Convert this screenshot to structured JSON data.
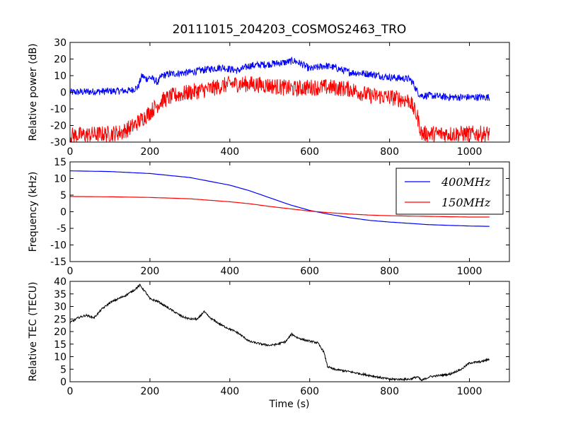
{
  "chart_data": {
    "title": "20111015_204203_COSMOS2463_TRO",
    "xlabel": "Time (s)",
    "xlim": [
      0,
      1100
    ],
    "xticks": [
      0,
      200,
      400,
      600,
      800,
      1000
    ],
    "panels": [
      {
        "type": "line",
        "ylabel": "Relative power (dB)",
        "ylim": [
          -30,
          30
        ],
        "yticks": [
          -30,
          -20,
          -10,
          0,
          10,
          20,
          30
        ],
        "grid": false,
        "series": [
          {
            "color": "#0000ff",
            "noise": 2.2,
            "x": [
              0,
              150,
              170,
              180,
              190,
              200,
              220,
              230,
              250,
              300,
              350,
              380,
              400,
              420,
              450,
              500,
              540,
              560,
              580,
              600,
              640,
              660,
              700,
              750,
              800,
              850,
              860,
              870,
              880,
              900,
              950,
              1000,
              1050
            ],
            "y": [
              0,
              1,
              3,
              10,
              8,
              9,
              6,
              10,
              11,
              12,
              14,
              15,
              14,
              13,
              16,
              17,
              18,
              19,
              17,
              14,
              16,
              15,
              12,
              11,
              9,
              8,
              5,
              0,
              -2,
              -2,
              -3,
              -3,
              -3
            ]
          },
          {
            "color": "#ff0000",
            "noise": 5,
            "x": [
              0,
              100,
              130,
              160,
              200,
              230,
              260,
              300,
              350,
              400,
              450,
              500,
              560,
              600,
              650,
              700,
              750,
              800,
              850,
              870,
              880,
              900,
              1050
            ],
            "y": [
              -26,
              -25,
              -24,
              -20,
              -12,
              -5,
              -2,
              0,
              2,
              5,
              5,
              4,
              2,
              3,
              3,
              2,
              -2,
              -3,
              -5,
              -15,
              -25,
              -25,
              -25
            ]
          }
        ]
      },
      {
        "type": "line",
        "ylabel": "Frequency (kHz)",
        "ylim": [
          -15,
          15
        ],
        "yticks": [
          -15,
          -10,
          -5,
          0,
          5,
          10,
          15
        ],
        "grid": false,
        "legend": "top-right",
        "series": [
          {
            "name": "400MHz",
            "color": "#0000ff",
            "x": [
              0,
              100,
              200,
              300,
              400,
              450,
              500,
              550,
              600,
              650,
              700,
              750,
              800,
              850,
              900,
              950,
              1000,
              1050
            ],
            "y": [
              12.3,
              12.1,
              11.5,
              10.3,
              8.0,
              6.3,
              4.2,
              2.1,
              0.4,
              -0.8,
              -1.8,
              -2.6,
              -3.1,
              -3.5,
              -3.9,
              -4.1,
              -4.3,
              -4.4
            ]
          },
          {
            "name": "150MHz",
            "color": "#ff0000",
            "x": [
              0,
              100,
              200,
              300,
              400,
              450,
              500,
              550,
              600,
              650,
              700,
              750,
              800,
              850,
              900,
              950,
              1000,
              1050
            ],
            "y": [
              4.6,
              4.5,
              4.3,
              3.9,
              3.0,
              2.4,
              1.6,
              0.9,
              0.2,
              -0.3,
              -0.7,
              -1.0,
              -1.2,
              -1.3,
              -1.4,
              -1.5,
              -1.6,
              -1.6
            ]
          }
        ]
      },
      {
        "type": "line",
        "ylabel": "Relative TEC (TECU)",
        "ylim": [
          0,
          40
        ],
        "yticks": [
          0,
          5,
          10,
          15,
          20,
          25,
          30,
          35,
          40
        ],
        "grid": false,
        "series": [
          {
            "color": "#000000",
            "noise": 0.4,
            "x": [
              0,
              20,
              40,
              60,
              80,
              100,
              120,
              140,
              160,
              175,
              190,
              200,
              220,
              250,
              280,
              300,
              320,
              335,
              350,
              380,
              400,
              420,
              450,
              480,
              500,
              520,
              540,
              555,
              570,
              590,
              620,
              635,
              645,
              660,
              680,
              700,
              750,
              800,
              850,
              870,
              880,
              900,
              950,
              980,
              1000,
              1030,
              1050
            ],
            "y": [
              23.5,
              25.5,
              26.5,
              25.5,
              29,
              31.5,
              33,
              34.5,
              36.5,
              38.5,
              35.5,
              33,
              32,
              29,
              26,
              25,
              25,
              28,
              25.5,
              22.5,
              21,
              19.5,
              16,
              15,
              14.5,
              15,
              16,
              19,
              17.5,
              16.5,
              15.5,
              12,
              6,
              5,
              4.5,
              4,
              2.5,
              1,
              1,
              2,
              0.5,
              2,
              3,
              5,
              7.5,
              8,
              9
            ]
          }
        ]
      }
    ]
  }
}
